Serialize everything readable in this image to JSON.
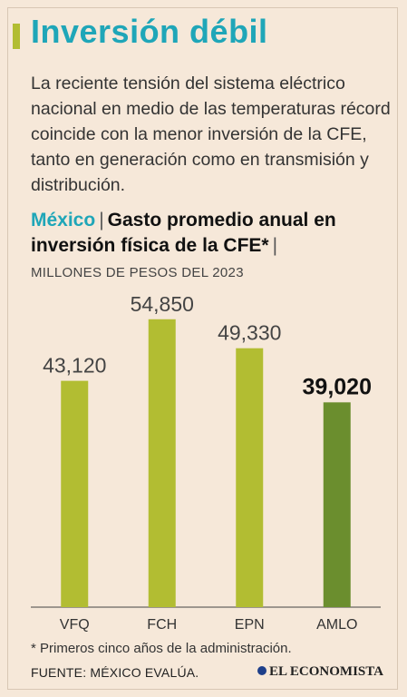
{
  "title": "Inversión débil",
  "intro": "La reciente tensión del sistema eléctrico nacional en medio de las temperaturas récord coincide con la menor inversión de la CFE, tanto en generación como en transmisión y distribución.",
  "subhead": {
    "country": "México",
    "separator": "|",
    "text": "Gasto promedio anual en inversión física de la CFE*",
    "trailing_separator": "|"
  },
  "units": "MILLONES DE PESOS DEL 2023",
  "footnote": "* Primeros cinco años de la administración.",
  "source": "FUENTE: MÉXICO EVALÚA.",
  "brand": "EL ECONOMISTA",
  "colors": {
    "accent": "#1fa6b8",
    "bar": "#b2bd32",
    "bar_highlight": "#6b8e2e",
    "background": "#f6e8d9"
  },
  "chart_data": {
    "type": "bar",
    "categories": [
      "VFQ",
      "FCH",
      "EPN",
      "AMLO"
    ],
    "values": [
      43120,
      54850,
      49330,
      39020
    ],
    "value_labels": [
      "43,120",
      "54,850",
      "49,330",
      "39,020"
    ],
    "highlight_index": 3,
    "ylim": [
      0,
      60000
    ],
    "grid": false,
    "title": "Gasto promedio anual en inversión física de la CFE*",
    "ylabel": "MILLONES DE PESOS DEL 2023"
  }
}
